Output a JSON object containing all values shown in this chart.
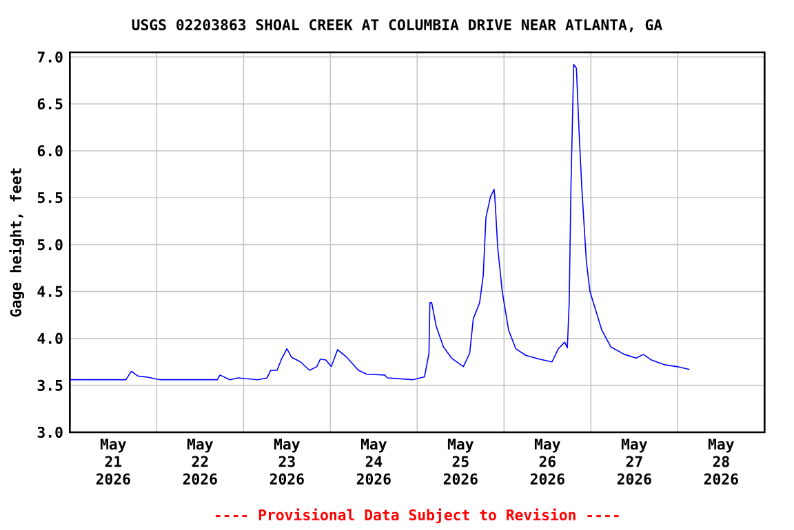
{
  "chart_data": {
    "type": "line",
    "title": "USGS 02203863 SHOAL CREEK AT COLUMBIA DRIVE NEAR ATLANTA, GA",
    "ylabel": "Gage height, feet",
    "annotations": [
      "---- Provisional Data Subject to Revision ----"
    ],
    "grid": true,
    "marker": "none",
    "line_style": "solid",
    "xlim": [
      "2026-05-21",
      "2026-05-29"
    ],
    "xticks": [
      {
        "value": "2026-05-21T12:00",
        "label": "May 21 2026"
      },
      {
        "value": "2026-05-22T12:00",
        "label": "May 22 2026"
      },
      {
        "value": "2026-05-23T12:00",
        "label": "May 23 2026"
      },
      {
        "value": "2026-05-24T12:00",
        "label": "May 24 2026"
      },
      {
        "value": "2026-05-25T12:00",
        "label": "May 25 2026"
      },
      {
        "value": "2026-05-26T12:00",
        "label": "May 26 2026"
      },
      {
        "value": "2026-05-27T12:00",
        "label": "May 27 2026"
      },
      {
        "value": "2026-05-28T12:00",
        "label": "May 28 2026"
      },
      {
        "value": "2026-05-22",
        "label": null
      },
      {
        "value": "2026-05-23",
        "label": null
      },
      {
        "value": "2026-05-24",
        "label": null
      },
      {
        "value": "2026-05-25",
        "label": null
      },
      {
        "value": "2026-05-26",
        "label": null
      },
      {
        "value": "2026-05-27",
        "label": null
      },
      {
        "value": "2026-05-28",
        "label": null
      }
    ],
    "ylim": [
      3,
      7.05
    ],
    "yticks": [
      {
        "value": 3,
        "label": "3.0"
      },
      3.5,
      {
        "value": 4,
        "label": "4.0"
      },
      4.5,
      {
        "value": 5,
        "label": "5.0"
      },
      5.5,
      {
        "value": 6,
        "label": "6.0"
      },
      6.5,
      {
        "value": 7,
        "label": "7.0"
      }
    ],
    "series": [
      {
        "color": "#0000ff",
        "x": [
          "2026-05-21T00:00",
          "2026-05-21T15:30",
          "2026-05-21T17:00",
          "2026-05-21T18:45",
          "2026-05-21T21:00",
          "2026-05-22T01:00",
          "2026-05-22T16:45",
          "2026-05-22T17:30",
          "2026-05-22T20:15",
          "2026-05-22T22:30",
          "2026-05-23T04:00",
          "2026-05-23T06:30",
          "2026-05-23T07:30",
          "2026-05-23T09:15",
          "2026-05-23T10:30",
          "2026-05-23T12:00",
          "2026-05-23T13:15",
          "2026-05-23T15:45",
          "2026-05-23T18:15",
          "2026-05-23T20:15",
          "2026-05-23T21:15",
          "2026-05-23T22:45",
          "2026-05-24T00:15",
          "2026-05-24T02:00",
          "2026-05-24T04:30",
          "2026-05-24T07:45",
          "2026-05-24T10:00",
          "2026-05-24T15:00",
          "2026-05-24T15:45",
          "2026-05-24T22:45",
          "2026-05-25T02:00",
          "2026-05-25T03:15",
          "2026-05-25T03:30",
          "2026-05-25T04:00",
          "2026-05-25T05:15",
          "2026-05-25T07:15",
          "2026-05-25T09:30",
          "2026-05-25T12:45",
          "2026-05-25T14:30",
          "2026-05-25T15:30",
          "2026-05-25T17:15",
          "2026-05-25T18:15",
          "2026-05-25T19:00",
          "2026-05-25T20:15",
          "2026-05-25T21:15",
          "2026-05-25T21:30",
          "2026-05-25T22:15",
          "2026-05-25T23:30",
          "2026-05-26T01:15",
          "2026-05-26T03:15",
          "2026-05-26T06:00",
          "2026-05-26T09:45",
          "2026-05-26T13:15",
          "2026-05-26T15:00",
          "2026-05-26T16:45",
          "2026-05-26T17:30",
          "2026-05-26T18:00",
          "2026-05-26T18:30",
          "2026-05-26T19:15",
          "2026-05-26T20:00",
          "2026-05-26T20:45",
          "2026-05-26T21:30",
          "2026-05-26T22:45",
          "2026-05-26T23:45",
          "2026-05-27T01:30",
          "2026-05-27T03:00",
          "2026-05-27T05:30",
          "2026-05-27T09:15",
          "2026-05-27T12:30",
          "2026-05-27T14:30",
          "2026-05-27T16:45",
          "2026-05-27T20:15",
          "2026-05-27T23:45",
          "2026-05-28T03:15"
        ],
        "values": [
          3.56,
          3.56,
          3.65,
          3.6,
          3.59,
          3.56,
          3.56,
          3.61,
          3.56,
          3.58,
          3.56,
          3.58,
          3.66,
          3.66,
          3.78,
          3.89,
          3.8,
          3.75,
          3.66,
          3.7,
          3.78,
          3.77,
          3.7,
          3.88,
          3.8,
          3.66,
          3.62,
          3.61,
          3.58,
          3.56,
          3.59,
          3.84,
          4.38,
          4.38,
          4.13,
          3.91,
          3.79,
          3.7,
          3.84,
          4.21,
          4.38,
          4.67,
          5.29,
          5.51,
          5.59,
          5.48,
          4.97,
          4.5,
          4.09,
          3.89,
          3.82,
          3.78,
          3.75,
          3.89,
          3.96,
          3.9,
          4.38,
          5.63,
          6.92,
          6.88,
          6.19,
          5.6,
          4.82,
          4.5,
          4.28,
          4.09,
          3.91,
          3.83,
          3.79,
          3.83,
          3.77,
          3.72,
          3.7,
          3.67
        ]
      }
    ]
  }
}
